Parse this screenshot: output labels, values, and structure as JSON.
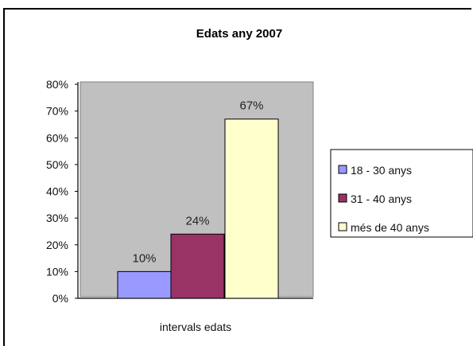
{
  "chart_data": {
    "type": "bar",
    "title": "Edats any 2007",
    "xlabel": "intervals edats",
    "ylabel": "",
    "ylim": [
      0,
      80
    ],
    "yticks": [
      "0%",
      "10%",
      "20%",
      "30%",
      "40%",
      "50%",
      "60%",
      "70%",
      "80%"
    ],
    "categories": [
      "intervals edats"
    ],
    "series": [
      {
        "name": "18 - 30 anys",
        "values": [
          10
        ],
        "label": "10%",
        "color": "#9999ff"
      },
      {
        "name": "31 - 40 anys",
        "values": [
          24
        ],
        "label": "24%",
        "color": "#993366"
      },
      {
        "name": "més de 40 anys",
        "values": [
          67
        ],
        "label": "67%",
        "color": "#ffffcc"
      }
    ],
    "plot_background": "#c0c0c0",
    "grid": false,
    "legend_position": "right"
  }
}
